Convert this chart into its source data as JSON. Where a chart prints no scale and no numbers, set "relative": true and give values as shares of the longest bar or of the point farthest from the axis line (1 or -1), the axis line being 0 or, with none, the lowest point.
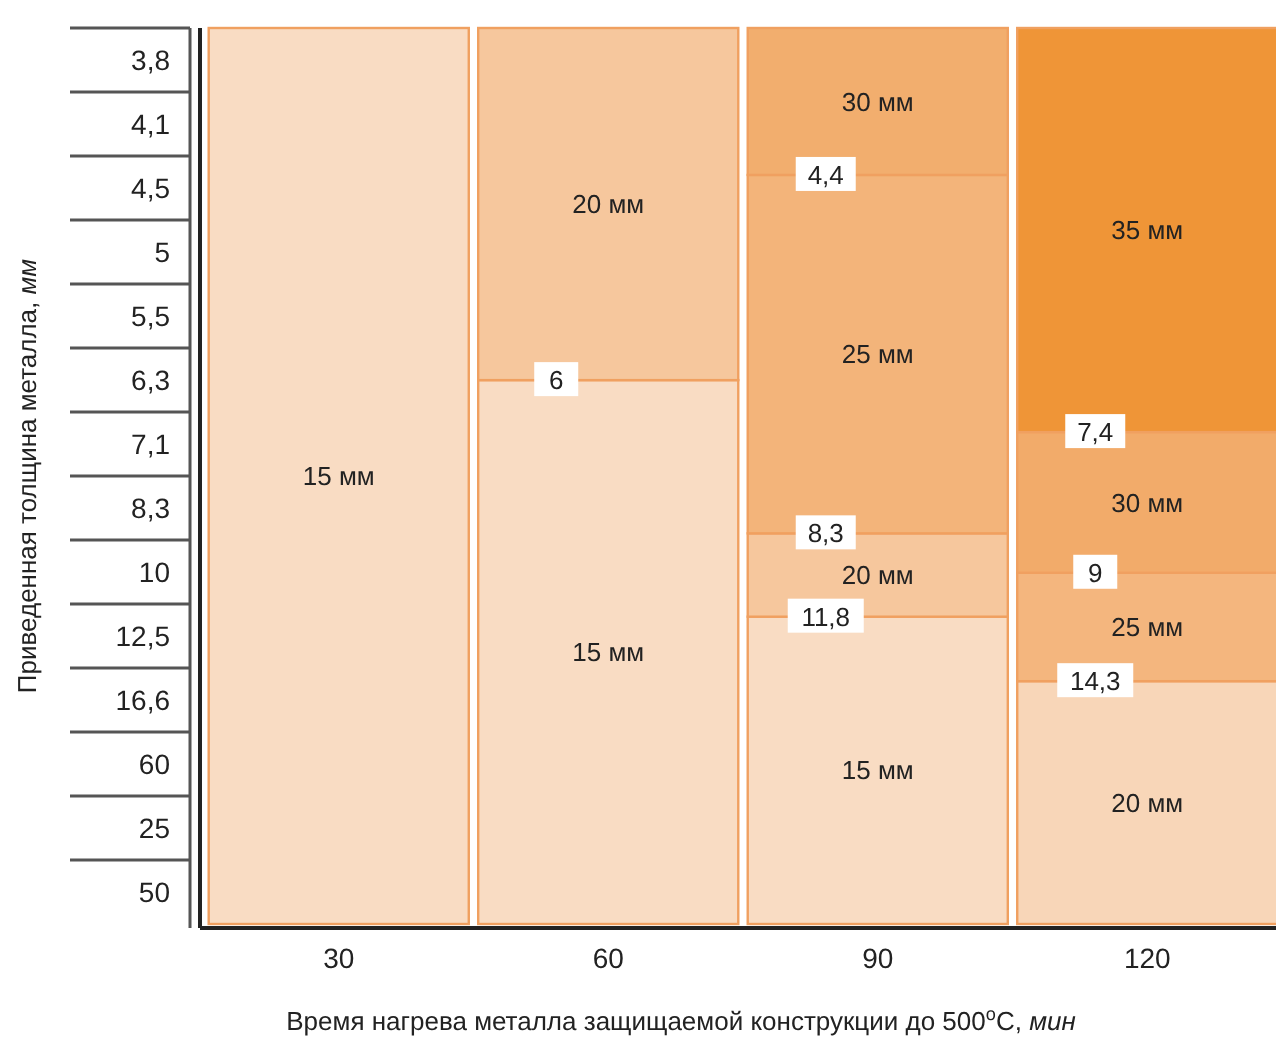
{
  "chart_data": {
    "type": "bar",
    "stacked": true,
    "relative": true,
    "categories": [
      "30",
      "60",
      "90",
      "120"
    ],
    "xlabel": "Время нагрева металла защищаемой конструкции до 500$^{o}$C, мин",
    "series": [
      {
        "name": "15 мм",
        "values": [
          1,
          0.607,
          0.343,
          null
        ],
        "colors": [
          "#f9dcc3",
          "#f9dcc3",
          "#f9dcc3",
          null
        ]
      },
      {
        "name": "20 мм",
        "values": [
          null,
          0.393,
          0.093,
          0.271
        ],
        "colors": [
          null,
          "#f6c79d",
          "#f6c79d",
          "#f8d6b8"
        ]
      },
      {
        "name": "25 мм",
        "values": [
          null,
          null,
          0.4,
          0.121
        ],
        "colors": [
          null,
          null,
          "#f3b47a",
          "#f4b67e"
        ]
      },
      {
        "name": "30 мм",
        "values": [
          null,
          null,
          0.164,
          0.157
        ],
        "colors": [
          null,
          null,
          "#f2ae6e",
          "#f2ab6a"
        ]
      },
      {
        "name": "35 мм",
        "values": [
          null,
          null,
          null,
          0.451
        ],
        "colors": [
          null,
          null,
          null,
          "#ef9537"
        ]
      }
    ],
    "annotations": [
      {
        "text": "Приведенная толщина металла, мм"
      },
      "3,8",
      "4,1",
      "4,5",
      "5",
      "5,5",
      "6,3",
      "7,1",
      "8,3",
      "10",
      "12,5",
      "16,6",
      "60",
      "25",
      "50",
      {
        "text": "6",
        "x": "60",
        "y": 0.607
      },
      {
        "text": "11,8",
        "x": "90",
        "y": 0.343
      },
      {
        "text": "8,3",
        "x": "90",
        "y": 0.436
      },
      {
        "text": "4,4",
        "x": "90",
        "y": 0.836
      },
      {
        "text": "14,3",
        "x": "120",
        "y": 0.271
      },
      {
        "text": "9",
        "x": "120",
        "y": 0.392
      },
      {
        "text": "7,4",
        "x": "120",
        "y": 0.549
      }
    ]
  }
}
